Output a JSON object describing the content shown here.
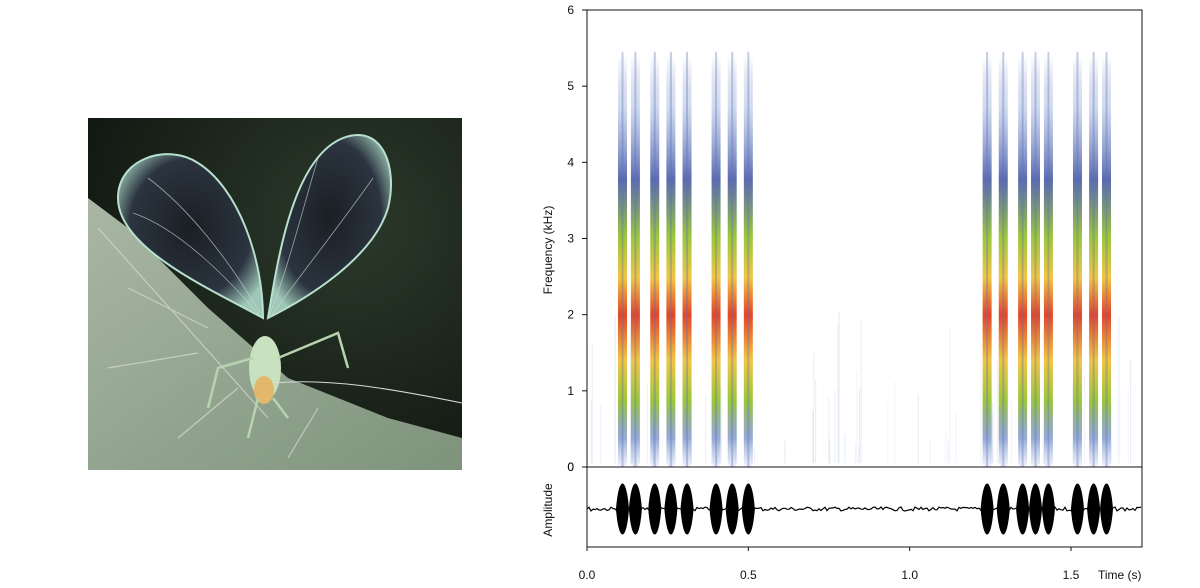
{
  "chart_data": {
    "type": "spectrogram",
    "spectrogram": {
      "ylabel": "Frequency (kHz)",
      "ylim": [
        0,
        6
      ],
      "yticks": [
        0,
        1,
        2,
        3,
        4,
        5,
        6
      ],
      "xlim": [
        0,
        1.72
      ],
      "grid": false,
      "pulse_trains": [
        {
          "pulses": [
            0.11,
            0.15,
            0.21,
            0.26,
            0.31,
            0.4,
            0.45,
            0.5
          ]
        },
        {
          "pulses": [
            1.24,
            1.29,
            1.35,
            1.39,
            1.43,
            1.52,
            1.57,
            1.61
          ]
        }
      ],
      "energy_band_khz": [
        0.8,
        2.8
      ],
      "peak_khz": 1.6,
      "max_extent_khz": 5.4
    },
    "oscillogram": {
      "ylabel": "Amplitude",
      "xlabel": "Time (s)",
      "xticks": [
        0.0,
        0.5,
        1.0,
        1.5
      ],
      "xtick_labels": [
        "0.0",
        "0.5",
        "1.0",
        "1.5"
      ]
    },
    "colors": {
      "low": "#4a5aa8",
      "mid": "#9cc63c",
      "high": "#e2452a",
      "waveform": "#000000"
    }
  },
  "photo": {
    "subject": "katydid-with-raised-wings-on-leaf"
  }
}
